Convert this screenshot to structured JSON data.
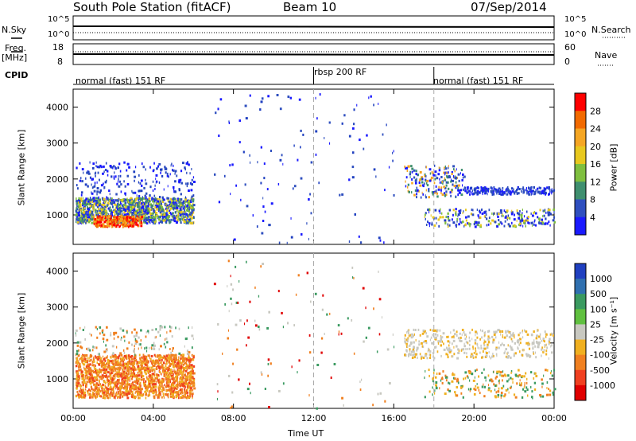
{
  "header": {
    "station": "South Pole Station (fitACF)",
    "beam": "Beam 10",
    "date": "07/Sep/2014"
  },
  "panels": {
    "nsky_label": "N.Sky",
    "nsky_ticks": [
      "10^5",
      "10^0"
    ],
    "nsearch_label": "N.Search",
    "nsearch_ticks": [
      "10^5",
      "10^0"
    ],
    "freq_label": "Freq.",
    "freq_unit": "[MHz]",
    "freq_ticks": [
      "18",
      "8"
    ],
    "nave_label": "Nave",
    "nave_ticks": [
      "60",
      "0"
    ],
    "cpid_label": "CPID",
    "cpid_segments": [
      "normal (fast) 151 RF",
      "rbsp 200 RF",
      "normal (fast) 151 RF"
    ]
  },
  "power_colorbar": {
    "label": "Power [dB]",
    "ticks": [
      "28",
      "24",
      "20",
      "16",
      "12",
      "8",
      "4"
    ],
    "colors": [
      "#ff0000",
      "#f26a00",
      "#f5a623",
      "#e8c81e",
      "#7fbf3f",
      "#3f8f6f",
      "#2f4fbf",
      "#1a1aff"
    ]
  },
  "velocity_colorbar": {
    "label": "Velocity [m s⁻¹]",
    "ticks": [
      "1000",
      "500",
      "100",
      "25",
      "-25",
      "-100",
      "-500",
      "-1000"
    ],
    "colors": [
      "#2040c0",
      "#3070b0",
      "#3a9a60",
      "#60c040",
      "#c8c8c0",
      "#f0b020",
      "#f08020",
      "#f04020",
      "#e00000"
    ]
  },
  "chart_data": {
    "type": "heatmap",
    "xlabel": "Time UT",
    "ylabel": "Slant Range [km]",
    "x_ticks": [
      "00:00",
      "04:00",
      "08:00",
      "12:00",
      "16:00",
      "20:00",
      "00:00"
    ],
    "y_ticks": [
      1000,
      2000,
      3000,
      4000
    ],
    "xlim": [
      "00:00",
      "24:00"
    ],
    "ylim": [
      180,
      4500
    ],
    "cpid_boundaries": [
      "12:00",
      "18:00"
    ]
  }
}
